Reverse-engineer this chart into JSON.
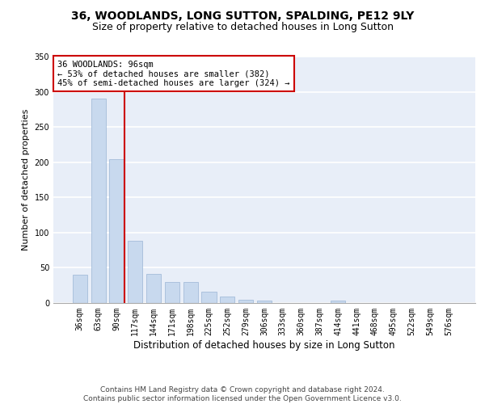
{
  "title": "36, WOODLANDS, LONG SUTTON, SPALDING, PE12 9LY",
  "subtitle": "Size of property relative to detached houses in Long Sutton",
  "xlabel": "Distribution of detached houses by size in Long Sutton",
  "ylabel": "Number of detached properties",
  "categories": [
    "36sqm",
    "63sqm",
    "90sqm",
    "117sqm",
    "144sqm",
    "171sqm",
    "198sqm",
    "225sqm",
    "252sqm",
    "279sqm",
    "306sqm",
    "333sqm",
    "360sqm",
    "387sqm",
    "414sqm",
    "441sqm",
    "468sqm",
    "495sqm",
    "522sqm",
    "549sqm",
    "576sqm"
  ],
  "values": [
    40,
    290,
    204,
    88,
    41,
    30,
    30,
    16,
    9,
    5,
    4,
    0,
    0,
    0,
    3,
    0,
    0,
    0,
    0,
    0,
    0
  ],
  "bar_color": "#c8d9ee",
  "bar_edge_color": "#9ab5d5",
  "highlight_line_index": 2,
  "highlight_line_color": "#cc0000",
  "annotation_text": "36 WOODLANDS: 96sqm\n← 53% of detached houses are smaller (382)\n45% of semi-detached houses are larger (324) →",
  "annotation_box_color": "white",
  "annotation_box_edge_color": "#cc0000",
  "ylim": [
    0,
    350
  ],
  "yticks": [
    0,
    50,
    100,
    150,
    200,
    250,
    300,
    350
  ],
  "background_color": "#e8eef8",
  "grid_color": "white",
  "footer": "Contains HM Land Registry data © Crown copyright and database right 2024.\nContains public sector information licensed under the Open Government Licence v3.0.",
  "title_fontsize": 10,
  "subtitle_fontsize": 9,
  "xlabel_fontsize": 8.5,
  "ylabel_fontsize": 8,
  "tick_fontsize": 7,
  "annotation_fontsize": 7.5,
  "footer_fontsize": 6.5
}
